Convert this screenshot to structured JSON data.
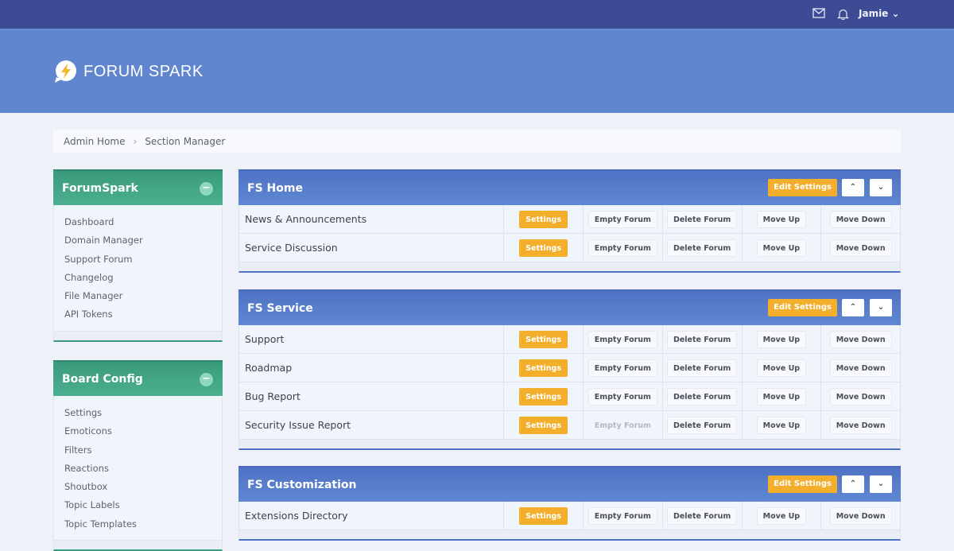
{
  "topbar": {
    "user": "Jamie",
    "icons": [
      "mail-icon",
      "bell-icon",
      "chevron-down-icon"
    ]
  },
  "header": {
    "logo_text": "FORUM SPARK"
  },
  "breadcrumb": [
    "Admin Home",
    "Section Manager"
  ],
  "sidebar": [
    {
      "title": "ForumSpark",
      "items": [
        "Dashboard",
        "Domain Manager",
        "Support Forum",
        "Changelog",
        "File Manager",
        "API Tokens"
      ]
    },
    {
      "title": "Board Config",
      "items": [
        "Settings",
        "Emoticons",
        "Filters",
        "Reactions",
        "Shoutbox",
        "Topic Labels",
        "Topic Templates"
      ]
    }
  ],
  "labels": {
    "edit_settings": "Edit Settings",
    "settings": "Settings",
    "empty": "Empty Forum",
    "delete": "Delete Forum",
    "up": "Move Up",
    "down": "Move Down",
    "arrow_up": "⌃",
    "arrow_down": "⌄"
  },
  "sections": [
    {
      "title": "FS Home",
      "forums": [
        {
          "name": "News & Announcements",
          "empty_disabled": false
        },
        {
          "name": "Service Discussion",
          "empty_disabled": false
        }
      ]
    },
    {
      "title": "FS Service",
      "forums": [
        {
          "name": "Support",
          "empty_disabled": false
        },
        {
          "name": "Roadmap",
          "empty_disabled": false
        },
        {
          "name": "Bug Report",
          "empty_disabled": false
        },
        {
          "name": "Security Issue Report",
          "empty_disabled": true
        }
      ]
    },
    {
      "title": "FS Customization",
      "forums": [
        {
          "name": "Extensions Directory",
          "empty_disabled": false
        }
      ]
    }
  ],
  "colors": {
    "topbar": "#3d4b94",
    "header": "#5f86cf",
    "section": "#4f72c4",
    "sidebar": "#3a9a7c",
    "accent": "#f3ae2c"
  }
}
